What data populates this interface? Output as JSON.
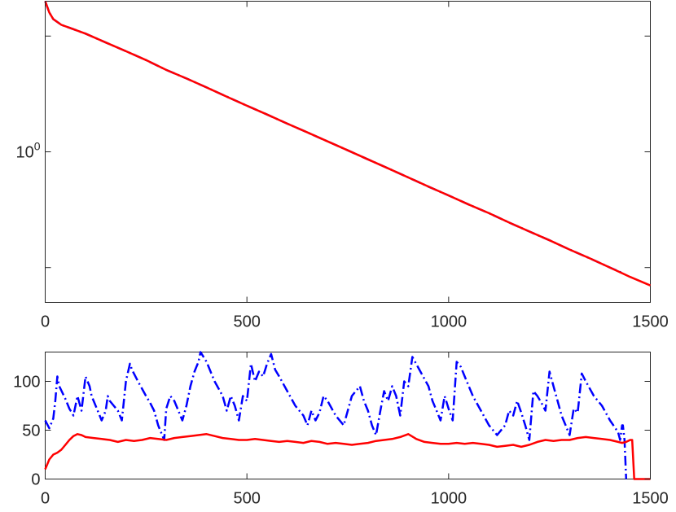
{
  "chart_data": [
    {
      "type": "line",
      "title": "",
      "xlabel": "",
      "ylabel": "",
      "yscale": "log",
      "xlim": [
        0,
        1500
      ],
      "ylim": [
        0.05,
        20
      ],
      "xticks": [
        0,
        500,
        1000,
        1500
      ],
      "xtick_labels": [
        "0",
        "500",
        "1000",
        "1500"
      ],
      "yticks": [
        1
      ],
      "ytick_labels": [
        {
          "base": "10",
          "exp": "0"
        }
      ],
      "grid": false,
      "series": [
        {
          "color": "#0000ff",
          "style": "dash-dot",
          "x": [
            0,
            10,
            20,
            40,
            60,
            100,
            150,
            200,
            250,
            300,
            350,
            400,
            450,
            500,
            550,
            600,
            650,
            700,
            750,
            800,
            850,
            900,
            950,
            1000,
            1050,
            1100,
            1150,
            1200,
            1250,
            1300,
            1350,
            1400,
            1430
          ],
          "y": [
            20,
            16,
            14,
            12.5,
            11.8,
            10.5,
            8.8,
            7.4,
            6.2,
            5.1,
            4.3,
            3.6,
            3.0,
            2.5,
            2.1,
            1.75,
            1.47,
            1.23,
            1.03,
            0.86,
            0.72,
            0.6,
            0.5,
            0.42,
            0.35,
            0.295,
            0.245,
            0.205,
            0.172,
            0.143,
            0.12,
            0.1,
            0.09
          ]
        },
        {
          "color": "#ff0000",
          "style": "solid",
          "x": [
            0,
            10,
            20,
            40,
            60,
            100,
            150,
            200,
            250,
            300,
            350,
            400,
            450,
            500,
            550,
            600,
            650,
            700,
            750,
            800,
            850,
            900,
            950,
            1000,
            1050,
            1100,
            1150,
            1200,
            1250,
            1300,
            1350,
            1400,
            1450,
            1500
          ],
          "y": [
            20,
            16,
            14,
            12.5,
            11.8,
            10.5,
            8.8,
            7.4,
            6.2,
            5.1,
            4.3,
            3.6,
            3.0,
            2.5,
            2.1,
            1.75,
            1.47,
            1.23,
            1.03,
            0.86,
            0.72,
            0.6,
            0.5,
            0.42,
            0.35,
            0.295,
            0.245,
            0.205,
            0.172,
            0.143,
            0.12,
            0.1,
            0.083,
            0.07
          ]
        }
      ]
    },
    {
      "type": "line",
      "title": "",
      "xlabel": "",
      "ylabel": "",
      "xlim": [
        0,
        1500
      ],
      "ylim": [
        0,
        130
      ],
      "xticks": [
        0,
        500,
        1000,
        1500
      ],
      "xtick_labels": [
        "0",
        "500",
        "1000",
        "1500"
      ],
      "yticks": [
        0,
        50,
        100
      ],
      "ytick_labels": [
        "0",
        "50",
        "100"
      ],
      "grid": false,
      "series": [
        {
          "color": "#0000ff",
          "style": "dash-dot",
          "x": [
            0,
            10,
            20,
            25,
            30,
            35,
            50,
            60,
            70,
            80,
            90,
            100,
            110,
            115,
            130,
            140,
            150,
            155,
            160,
            170,
            180,
            190,
            200,
            210,
            215,
            230,
            250,
            260,
            270,
            280,
            290,
            295,
            300,
            310,
            320,
            330,
            340,
            350,
            360,
            370,
            380,
            385,
            400,
            420,
            440,
            450,
            460,
            470,
            480,
            490,
            500,
            510,
            520,
            530,
            540,
            550,
            560,
            570,
            580,
            600,
            620,
            640,
            650,
            660,
            670,
            680,
            690,
            700,
            720,
            740,
            750,
            760,
            770,
            780,
            790,
            800,
            810,
            820,
            830,
            840,
            850,
            860,
            870,
            880,
            890,
            900,
            910,
            930,
            950,
            960,
            970,
            980,
            990,
            1000,
            1010,
            1020,
            1030,
            1040,
            1050,
            1060,
            1080,
            1100,
            1120,
            1140,
            1150,
            1160,
            1170,
            1180,
            1190,
            1200,
            1210,
            1220,
            1230,
            1240,
            1250,
            1260,
            1270,
            1280,
            1290,
            1300,
            1310,
            1320,
            1330,
            1340,
            1360,
            1380,
            1400,
            1420,
            1425,
            1430,
            1432,
            1436,
            1440
          ],
          "y": [
            60,
            52,
            62,
            80,
            105,
            95,
            82,
            72,
            65,
            85,
            70,
            105,
            95,
            85,
            70,
            60,
            70,
            85,
            80,
            75,
            70,
            60,
            100,
            118,
            112,
            100,
            85,
            78,
            70,
            55,
            45,
            40,
            72,
            85,
            80,
            70,
            60,
            75,
            95,
            110,
            120,
            130,
            120,
            100,
            85,
            70,
            85,
            75,
            60,
            85,
            80,
            118,
            100,
            110,
            105,
            118,
            128,
            112,
            105,
            90,
            75,
            65,
            55,
            70,
            60,
            68,
            85,
            80,
            65,
            55,
            70,
            85,
            90,
            95,
            80,
            70,
            55,
            45,
            68,
            90,
            80,
            95,
            85,
            65,
            100,
            95,
            125,
            110,
            95,
            80,
            70,
            60,
            85,
            72,
            60,
            120,
            115,
            105,
            95,
            85,
            70,
            55,
            45,
            55,
            70,
            65,
            80,
            68,
            55,
            40,
            90,
            85,
            78,
            70,
            110,
            95,
            80,
            65,
            55,
            45,
            72,
            68,
            108,
            100,
            85,
            75,
            60,
            48,
            40,
            55,
            55,
            40,
            0
          ]
        },
        {
          "color": "#ff0000",
          "style": "solid",
          "x": [
            0,
            10,
            20,
            30,
            40,
            50,
            60,
            70,
            80,
            90,
            100,
            120,
            140,
            160,
            180,
            200,
            220,
            240,
            260,
            280,
            300,
            320,
            340,
            360,
            380,
            400,
            420,
            440,
            460,
            480,
            500,
            520,
            540,
            560,
            580,
            600,
            620,
            640,
            660,
            680,
            700,
            720,
            740,
            760,
            780,
            800,
            820,
            840,
            860,
            880,
            900,
            920,
            940,
            960,
            980,
            1000,
            1020,
            1040,
            1060,
            1080,
            1100,
            1120,
            1140,
            1160,
            1180,
            1200,
            1220,
            1240,
            1260,
            1280,
            1300,
            1320,
            1340,
            1360,
            1380,
            1400,
            1420,
            1430,
            1440,
            1450,
            1455,
            1460,
            1470,
            1480,
            1490,
            1500
          ],
          "y": [
            10,
            20,
            25,
            27,
            30,
            35,
            40,
            44,
            46,
            45,
            43,
            42,
            41,
            40,
            38,
            40,
            39,
            40,
            42,
            41,
            40,
            42,
            43,
            44,
            45,
            46,
            44,
            42,
            41,
            40,
            40,
            41,
            40,
            39,
            38,
            39,
            38,
            37,
            39,
            38,
            36,
            37,
            36,
            35,
            36,
            37,
            39,
            40,
            41,
            43,
            46,
            41,
            38,
            37,
            36,
            36,
            37,
            36,
            37,
            36,
            35,
            33,
            34,
            35,
            33,
            35,
            38,
            40,
            39,
            40,
            40,
            42,
            43,
            42,
            41,
            40,
            38,
            37,
            38,
            40,
            40,
            0,
            0,
            0,
            0,
            0
          ]
        }
      ]
    }
  ]
}
